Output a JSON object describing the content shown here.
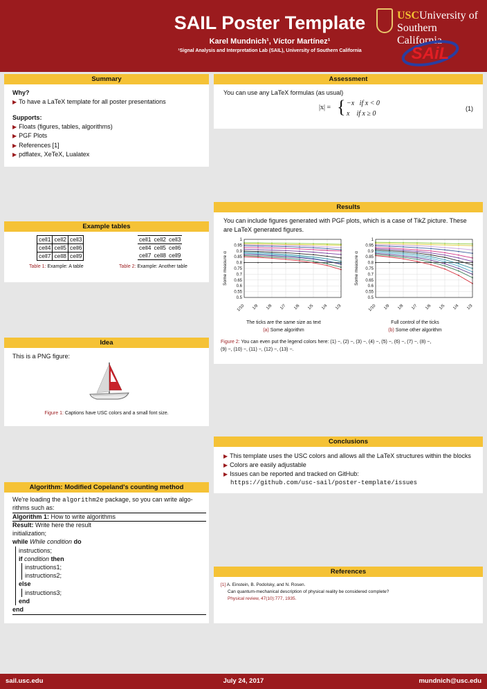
{
  "header": {
    "title": "SAIL Poster Template",
    "authors": "Karel Mundnich¹, Víctor Martínez¹",
    "affiliation": "¹Signal Analysis and Interpretation Lab (SAIL), University of Southern California",
    "usc_logo_1": "USC",
    "usc_logo_2": "University of",
    "usc_logo_3": "Southern California",
    "sail_logo": "SAiL"
  },
  "summary": {
    "title": "Summary",
    "why_heading": "Why?",
    "why_items": [
      "To have a LaTeX template for all poster presentations"
    ],
    "supports_heading": "Supports:",
    "supports_items": [
      "Floats (figures, tables, algorithms)",
      "PGF Plots",
      "References [1]",
      "pdflatex, XeTeX, Lualatex"
    ]
  },
  "tables": {
    "title": "Example tables",
    "rows": [
      [
        "cell1",
        "cell2",
        "cell3"
      ],
      [
        "cell4",
        "cell5",
        "cell6"
      ],
      [
        "cell7",
        "cell8",
        "cell9"
      ]
    ],
    "caption1_label": "Table 1:",
    "caption1_text": "Example: A table",
    "caption2_label": "Table 2:",
    "caption2_text": "Example: Another table"
  },
  "idea": {
    "title": "Idea",
    "text": "This is a PNG figure:",
    "caption_label": "Figure 1:",
    "caption_text": "Captions have USC colors and a small font size."
  },
  "algorithm": {
    "title": "Algorithm: Modified Copeland's counting method",
    "intro_1": "We're loading the",
    "intro_pkg": "algorithm2e",
    "intro_2": "package, so you can write algo-",
    "intro_3": "rithms such as:",
    "algo_label": "Algorithm 1:",
    "algo_name": "How to write algorithms",
    "lines": {
      "result_kw": "Result:",
      "result_text": "Write here the result",
      "init": "initialization;",
      "while_kw": "while",
      "while_cond": "While condition",
      "do_kw": "do",
      "instr": "instructions;",
      "if_kw": "if",
      "if_cond": "condition",
      "then_kw": "then",
      "instr1": "instructions1;",
      "instr2": "instructions2;",
      "else_kw": "else",
      "instr3": "instructions3;",
      "end1": "end",
      "end2": "end"
    }
  },
  "assessment": {
    "title": "Assessment",
    "text": "You can use any LaTeX formulas (as usual)",
    "lhs": "|x| =",
    "case1": "−x   if x < 0",
    "case2": "x    if x ≥ 0",
    "eqno": "(1)"
  },
  "results": {
    "title": "Results",
    "text_1": "You can include figures generated with PGF plots, which is a case of TikZ picture. These",
    "text_2": "are LaTeX generated figures.",
    "sub_a_title": "The ticks are the same size as text",
    "sub_a_label": "(a)",
    "sub_a_text": "Some algorithm",
    "sub_b_title": "Full control of the ticks",
    "sub_b_label": "(b)",
    "sub_b_text": "Some other algorithm",
    "caption_label": "Figure 2:",
    "caption_text_1": "You can even put the legend colors here: (1) −, (2) −, (3) −, (4) −, (5) −, (6) −, (7) −, (8) −,",
    "caption_text_2": "(9) −, (10) −, (11) −, (12) −, (13) −."
  },
  "chart_data": [
    {
      "type": "line",
      "x": [
        "1/10",
        "1/9",
        "1/8",
        "1/7",
        "1/6",
        "1/5",
        "1/4",
        "1/3"
      ],
      "ylabel": "Some measure α",
      "ylim": [
        0.5,
        1.0
      ],
      "yticks": [
        "1",
        "0.95",
        "0.9",
        "0.85",
        "0.8",
        "0.75",
        "0.7",
        "0.65",
        "0.6",
        "0.55",
        "0.5"
      ],
      "grid": true,
      "series": [
        {
          "color": "#8ecb3d",
          "values": [
            0.97,
            0.97,
            0.968,
            0.966,
            0.965,
            0.963,
            0.96,
            0.958
          ]
        },
        {
          "color": "#e6d23a",
          "values": [
            0.96,
            0.96,
            0.958,
            0.956,
            0.955,
            0.953,
            0.951,
            0.95
          ]
        },
        {
          "color": "#c9a0dc",
          "values": [
            0.955,
            0.952,
            0.95,
            0.948,
            0.945,
            0.94,
            0.935,
            0.93
          ]
        },
        {
          "color": "#3c5b9b",
          "values": [
            0.945,
            0.942,
            0.94,
            0.937,
            0.933,
            0.928,
            0.92,
            0.91
          ]
        },
        {
          "color": "#d43a8a",
          "values": [
            0.93,
            0.928,
            0.925,
            0.922,
            0.918,
            0.912,
            0.905,
            0.9
          ]
        },
        {
          "color": "#7a3fa0",
          "values": [
            0.915,
            0.912,
            0.908,
            0.903,
            0.897,
            0.89,
            0.88,
            0.87
          ]
        },
        {
          "color": "#2a2a2a",
          "values": [
            0.9,
            0.895,
            0.89,
            0.885,
            0.877,
            0.868,
            0.855,
            0.84
          ]
        },
        {
          "color": "#2e8ea0",
          "values": [
            0.89,
            0.885,
            0.878,
            0.87,
            0.86,
            0.848,
            0.832,
            0.81
          ]
        },
        {
          "color": "#4aa7c9",
          "values": [
            0.88,
            0.875,
            0.868,
            0.86,
            0.85,
            0.835,
            0.815,
            0.79
          ]
        },
        {
          "color": "#5e3a8a",
          "values": [
            0.87,
            0.866,
            0.86,
            0.852,
            0.842,
            0.83,
            0.812,
            0.785
          ]
        },
        {
          "color": "#3d7d5a",
          "values": [
            0.86,
            0.855,
            0.848,
            0.84,
            0.828,
            0.812,
            0.79,
            0.76
          ]
        },
        {
          "color": "#333333",
          "values": [
            0.8,
            0.8,
            0.8,
            0.8,
            0.8,
            0.8,
            0.8,
            0.8
          ]
        },
        {
          "color": "#d6333f",
          "values": [
            0.85,
            0.845,
            0.837,
            0.828,
            0.815,
            0.798,
            0.775,
            0.74
          ]
        }
      ]
    },
    {
      "type": "line",
      "x": [
        "1/10",
        "1/9",
        "1/8",
        "1/7",
        "1/6",
        "1/5",
        "1/4",
        "1/3"
      ],
      "ylabel": "Some measure α",
      "ylim": [
        0.5,
        1.0
      ],
      "yticks": [
        "1",
        "0.95",
        "0.9",
        "0.85",
        "0.8",
        "0.75",
        "0.7",
        "0.65",
        "0.6",
        "0.55",
        "0.5"
      ],
      "grid": true,
      "series": [
        {
          "color": "#8ecb3d",
          "values": [
            0.975,
            0.974,
            0.972,
            0.97,
            0.968,
            0.965,
            0.962,
            0.96
          ]
        },
        {
          "color": "#e6d23a",
          "values": [
            0.965,
            0.963,
            0.96,
            0.958,
            0.955,
            0.952,
            0.948,
            0.945
          ]
        },
        {
          "color": "#c9a0dc",
          "values": [
            0.955,
            0.952,
            0.948,
            0.944,
            0.938,
            0.93,
            0.92,
            0.91
          ]
        },
        {
          "color": "#3c5b9b",
          "values": [
            0.945,
            0.94,
            0.935,
            0.928,
            0.92,
            0.91,
            0.895,
            0.88
          ]
        },
        {
          "color": "#d43a8a",
          "values": [
            0.93,
            0.925,
            0.918,
            0.91,
            0.9,
            0.885,
            0.865,
            0.84
          ]
        },
        {
          "color": "#7a3fa0",
          "values": [
            0.92,
            0.914,
            0.906,
            0.896,
            0.883,
            0.865,
            0.84,
            0.81
          ]
        },
        {
          "color": "#2a2a2a",
          "values": [
            0.91,
            0.903,
            0.894,
            0.882,
            0.866,
            0.845,
            0.815,
            0.78
          ]
        },
        {
          "color": "#2e8ea0",
          "values": [
            0.9,
            0.892,
            0.882,
            0.868,
            0.85,
            0.825,
            0.79,
            0.75
          ]
        },
        {
          "color": "#4aa7c9",
          "values": [
            0.89,
            0.881,
            0.87,
            0.855,
            0.835,
            0.808,
            0.77,
            0.72
          ]
        },
        {
          "color": "#5e3a8a",
          "values": [
            0.88,
            0.87,
            0.858,
            0.842,
            0.82,
            0.79,
            0.75,
            0.7
          ]
        },
        {
          "color": "#3d7d5a",
          "values": [
            0.87,
            0.86,
            0.846,
            0.828,
            0.804,
            0.772,
            0.728,
            0.67
          ]
        },
        {
          "color": "#333333",
          "values": [
            0.8,
            0.8,
            0.8,
            0.8,
            0.8,
            0.8,
            0.8,
            0.8
          ]
        },
        {
          "color": "#d6333f",
          "values": [
            0.86,
            0.848,
            0.832,
            0.81,
            0.782,
            0.745,
            0.69,
            0.62
          ]
        }
      ]
    }
  ],
  "conclusions": {
    "title": "Conclusions",
    "items": [
      "This template uses the USC colors and allows all the LaTeX structures within the blocks",
      "Colors are easily adjustable",
      "Issues can be reported and tracked on GitHub:"
    ],
    "url": "https://github.com/usc-sail/poster-template/issues"
  },
  "references": {
    "title": "References",
    "ref_num": "[1]",
    "authors": "A. Einstein, B. Podolsky, and N. Rosen.",
    "title_text": "Can quantum-mechanical description of physical reality be considered complete?",
    "venue": "Physical review, 47(10):777, 1935."
  },
  "footer": {
    "left": "sail.usc.edu",
    "center": "July 24, 2017",
    "right": "mundnich@usc.edu"
  }
}
